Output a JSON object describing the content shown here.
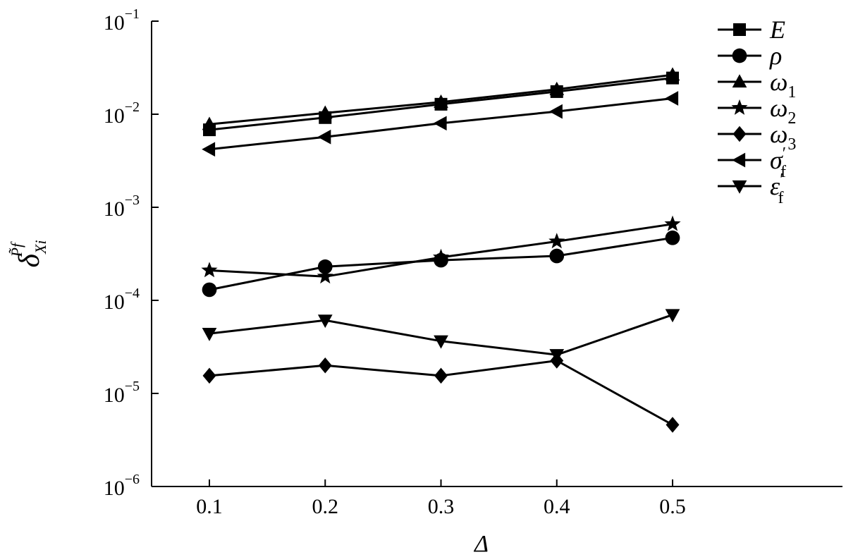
{
  "chart_data": {
    "type": "line",
    "title": "",
    "xlabel": "Δ",
    "ylabel": "δ",
    "ylabel_sub": "Xi",
    "ylabel_sup": "P̃f",
    "yscale": "log",
    "xlim": [
      0.05,
      0.6
    ],
    "ylim": [
      1e-06,
      0.1
    ],
    "x": [
      0.1,
      0.2,
      0.3,
      0.4,
      0.5
    ],
    "x_tick_labels": [
      "0.1",
      "0.2",
      "0.3",
      "0.4",
      "0.5"
    ],
    "y_ticks": [
      {
        "value": 0.1,
        "base": "10",
        "exp": "−1"
      },
      {
        "value": 0.01,
        "base": "10",
        "exp": "−2"
      },
      {
        "value": 0.001,
        "base": "10",
        "exp": "−3"
      },
      {
        "value": 0.0001,
        "base": "10",
        "exp": "−4"
      },
      {
        "value": 1e-05,
        "base": "10",
        "exp": "−5"
      },
      {
        "value": 1e-06,
        "base": "10",
        "exp": "−6"
      }
    ],
    "legend_position": "top-right",
    "series": [
      {
        "name": "E",
        "sub": "",
        "sup": "",
        "marker": "square",
        "values": [
          0.0068,
          0.0092,
          0.0128,
          0.0175,
          0.0245
        ]
      },
      {
        "name": "ρ",
        "sub": "",
        "sup": "",
        "marker": "circle",
        "values": [
          0.00013,
          0.00023,
          0.00027,
          0.0003,
          0.00047
        ]
      },
      {
        "name": "ω",
        "sub": "1",
        "sup": "",
        "marker": "triangle-up",
        "values": [
          0.0078,
          0.0103,
          0.0135,
          0.0185,
          0.0265
        ]
      },
      {
        "name": "ω",
        "sub": "2",
        "sup": "",
        "marker": "star",
        "values": [
          0.00021,
          0.00018,
          0.00029,
          0.00043,
          0.00066
        ]
      },
      {
        "name": "ω",
        "sub": "3",
        "sup": "",
        "marker": "diamond",
        "values": [
          1.55e-05,
          2e-05,
          1.55e-05,
          2.25e-05,
          4.6e-06
        ]
      },
      {
        "name": "σ",
        "sub": "f",
        "sup": "′",
        "marker": "triangle-left",
        "values": [
          0.0042,
          0.0057,
          0.008,
          0.0107,
          0.0148
        ]
      },
      {
        "name": "ε",
        "sub": "f",
        "sup": "′",
        "marker": "triangle-down",
        "values": [
          4.4e-05,
          6.1e-05,
          3.65e-05,
          2.6e-05,
          7e-05
        ]
      }
    ]
  }
}
